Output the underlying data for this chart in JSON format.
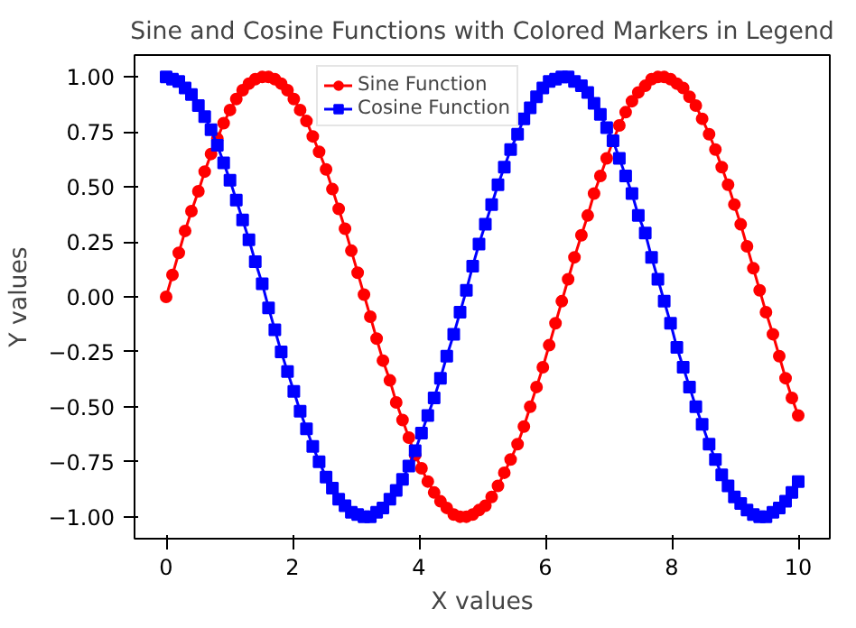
{
  "chart_data": {
    "type": "line",
    "title": "Sine and Cosine Functions with Colored Markers in Legend",
    "xlabel": "X values",
    "ylabel": "Y values",
    "x": [
      0.0,
      0.1,
      0.2,
      0.3,
      0.4,
      0.51,
      0.61,
      0.71,
      0.81,
      0.91,
      1.01,
      1.11,
      1.21,
      1.31,
      1.41,
      1.52,
      1.62,
      1.72,
      1.82,
      1.92,
      2.02,
      2.12,
      2.22,
      2.32,
      2.42,
      2.53,
      2.63,
      2.73,
      2.83,
      2.93,
      3.03,
      3.13,
      3.23,
      3.33,
      3.43,
      3.54,
      3.64,
      3.74,
      3.84,
      3.94,
      4.04,
      4.14,
      4.24,
      4.34,
      4.44,
      4.55,
      4.65,
      4.75,
      4.85,
      4.95,
      5.05,
      5.15,
      5.25,
      5.35,
      5.45,
      5.56,
      5.66,
      5.76,
      5.86,
      5.96,
      6.06,
      6.16,
      6.26,
      6.36,
      6.46,
      6.57,
      6.67,
      6.77,
      6.87,
      6.97,
      7.07,
      7.17,
      7.27,
      7.37,
      7.47,
      7.58,
      7.68,
      7.78,
      7.88,
      7.98,
      8.08,
      8.18,
      8.28,
      8.38,
      8.48,
      8.59,
      8.69,
      8.79,
      8.89,
      8.99,
      9.09,
      9.19,
      9.29,
      9.39,
      9.49,
      9.6,
      9.7,
      9.8,
      9.9,
      10.0
    ],
    "series": [
      {
        "name": "Sine Function",
        "color": "#ff0000",
        "marker": "circle",
        "values": [
          0.0,
          0.1,
          0.2,
          0.3,
          0.39,
          0.48,
          0.57,
          0.65,
          0.72,
          0.79,
          0.85,
          0.9,
          0.94,
          0.97,
          0.99,
          1.0,
          1.0,
          0.99,
          0.97,
          0.94,
          0.9,
          0.85,
          0.8,
          0.73,
          0.66,
          0.58,
          0.49,
          0.4,
          0.31,
          0.21,
          0.11,
          0.01,
          -0.09,
          -0.19,
          -0.29,
          -0.38,
          -0.48,
          -0.56,
          -0.64,
          -0.72,
          -0.78,
          -0.84,
          -0.89,
          -0.93,
          -0.96,
          -0.99,
          -1.0,
          -1.0,
          -0.99,
          -0.97,
          -0.95,
          -0.91,
          -0.86,
          -0.8,
          -0.74,
          -0.67,
          -0.59,
          -0.5,
          -0.41,
          -0.32,
          -0.22,
          -0.12,
          -0.02,
          0.08,
          0.18,
          0.28,
          0.37,
          0.47,
          0.55,
          0.63,
          0.71,
          0.78,
          0.84,
          0.89,
          0.93,
          0.96,
          0.99,
          1.0,
          1.0,
          0.99,
          0.97,
          0.95,
          0.91,
          0.87,
          0.81,
          0.74,
          0.67,
          0.59,
          0.51,
          0.42,
          0.33,
          0.23,
          0.13,
          0.03,
          -0.07,
          -0.17,
          -0.27,
          -0.37,
          -0.46,
          -0.54
        ]
      },
      {
        "name": "Cosine Function",
        "color": "#0000ff",
        "marker": "square",
        "values": [
          1.0,
          0.99,
          0.98,
          0.95,
          0.92,
          0.87,
          0.82,
          0.76,
          0.69,
          0.61,
          0.53,
          0.44,
          0.35,
          0.26,
          0.16,
          0.06,
          -0.05,
          -0.15,
          -0.25,
          -0.34,
          -0.43,
          -0.52,
          -0.6,
          -0.68,
          -0.75,
          -0.82,
          -0.87,
          -0.92,
          -0.95,
          -0.98,
          -0.99,
          -1.0,
          -1.0,
          -0.98,
          -0.96,
          -0.92,
          -0.88,
          -0.83,
          -0.77,
          -0.7,
          -0.62,
          -0.54,
          -0.46,
          -0.37,
          -0.27,
          -0.17,
          -0.07,
          0.03,
          0.14,
          0.24,
          0.33,
          0.42,
          0.51,
          0.59,
          0.67,
          0.74,
          0.81,
          0.86,
          0.91,
          0.95,
          0.98,
          0.99,
          1.0,
          1.0,
          0.98,
          0.96,
          0.93,
          0.88,
          0.83,
          0.77,
          0.71,
          0.63,
          0.55,
          0.47,
          0.37,
          0.29,
          0.18,
          0.08,
          -0.02,
          -0.12,
          -0.23,
          -0.32,
          -0.41,
          -0.5,
          -0.58,
          -0.67,
          -0.74,
          -0.81,
          -0.86,
          -0.91,
          -0.94,
          -0.97,
          -0.99,
          -1.0,
          -1.0,
          -0.98,
          -0.96,
          -0.93,
          -0.89,
          -0.84
        ]
      }
    ],
    "xlim": [
      -0.5,
      10.5
    ],
    "ylim": [
      -1.1,
      1.1
    ],
    "xticks": [
      0,
      2,
      4,
      6,
      8,
      10
    ],
    "yticks": [
      {
        "value": -1,
        "label": "−1.00"
      },
      {
        "value": -0.75,
        "label": "−0.75"
      },
      {
        "value": -0.5,
        "label": "−0.50"
      },
      {
        "value": -0.25,
        "label": "−0.25"
      },
      {
        "value": 0,
        "label": "0.00"
      },
      {
        "value": 0.25,
        "label": "0.25"
      },
      {
        "value": 0.5,
        "label": "0.50"
      },
      {
        "value": 0.75,
        "label": "0.75"
      },
      {
        "value": 1,
        "label": "1.00"
      }
    ],
    "grid": false,
    "legend": "top",
    "line_style": "solid"
  }
}
